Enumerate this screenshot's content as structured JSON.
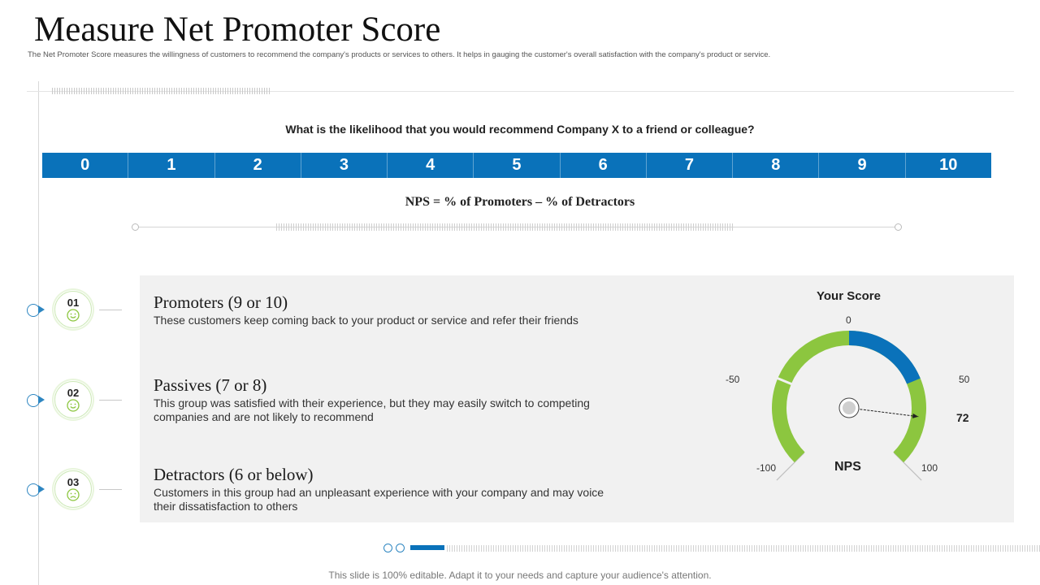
{
  "title": "Measure Net Promoter Score",
  "subtitle": "The Net Promoter Score measures the willingness of customers to recommend the company's products or services to others. It helps in gauging the customer's overall satisfaction with the company's product or service.",
  "question": "What is the likelihood that you would recommend Company X to a friend or colleague?",
  "scale": [
    "0",
    "1",
    "2",
    "3",
    "4",
    "5",
    "6",
    "7",
    "8",
    "9",
    "10"
  ],
  "formula": "NPS = % of Promoters – % of Detractors",
  "segments": [
    {
      "num": "01",
      "title": "Promoters (9 or 10)",
      "desc": "These customers keep coming back to your product or service and refer their friends",
      "face": "smile-icon"
    },
    {
      "num": "02",
      "title": "Passives (7 or 8)",
      "desc": "This group was satisfied with their experience, but they may easily switch to competing companies and are not likely to recommend",
      "face": "smile-icon"
    },
    {
      "num": "03",
      "title": "Detractors (6 or below)",
      "desc": "Customers in this group had an unpleasant experience with your company and may voice their dissatisfaction to others",
      "face": "frown-icon"
    }
  ],
  "gauge": {
    "heading": "Your Score",
    "labels": {
      "min": "-100",
      "low": "-50",
      "zero": "0",
      "high": "50",
      "max": "100"
    },
    "score": "72",
    "score_value": 72,
    "center_label": "NPS",
    "colors": {
      "filled": "#0a72ba",
      "base": "#8cc63f"
    }
  },
  "footer": "This slide is 100% editable. Adapt it to your needs and capture your audience's attention.",
  "colors": {
    "accent": "#0a72ba",
    "green": "#8cc63f",
    "panel": "#f1f1f1"
  }
}
